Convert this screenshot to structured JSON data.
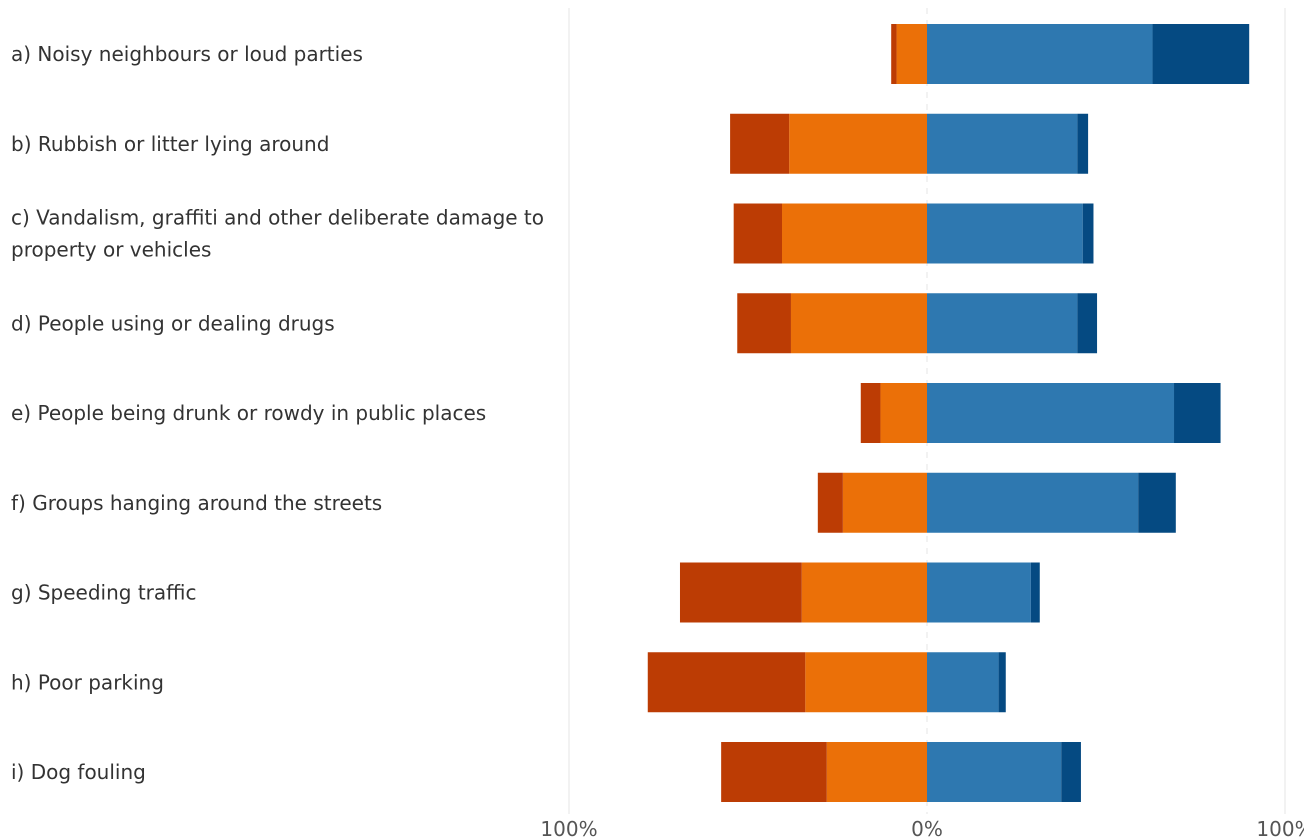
{
  "chart_data": {
    "type": "bar",
    "orientation": "horizontal",
    "stacking": "diverging",
    "categories": [
      "a) Noisy neighbours or loud parties",
      "b) Rubbish or litter lying around",
      "c) Vandalism, graffiti and other deliberate damage to property or vehicles",
      "d) People using or dealing drugs",
      "e) People being drunk or rowdy in public places",
      "f) Groups hanging around the streets",
      "g) Speeding traffic",
      "h) Poor parking",
      "i) Dog fouling"
    ],
    "category_lines": [
      [
        "a) Noisy neighbours or loud parties"
      ],
      [
        "b) Rubbish or litter lying around"
      ],
      [
        "c) Vandalism, graffiti and other deliberate damage to",
        "property or vehicles"
      ],
      [
        "d) People using or dealing drugs"
      ],
      [
        "e) People being drunk or rowdy in public places"
      ],
      [
        "f) Groups hanging around the streets"
      ],
      [
        "g) Speeding traffic"
      ],
      [
        "h) Poor parking"
      ],
      [
        "i) Dog fouling"
      ]
    ],
    "series": [
      {
        "side": "negative",
        "color": "#BC3C04",
        "values": [
          1.5,
          16.5,
          13.5,
          15,
          5.5,
          7,
          34,
          44,
          29.5
        ]
      },
      {
        "side": "negative",
        "color": "#EB7008",
        "values": [
          8.5,
          38.5,
          40.5,
          38,
          13,
          23.5,
          35,
          34,
          28
        ]
      },
      {
        "side": "positive",
        "color": "#2E78B0",
        "values": [
          63,
          42,
          43.5,
          42,
          69,
          59,
          29,
          20,
          37.5
        ]
      },
      {
        "side": "positive",
        "color": "#054A82",
        "values": [
          27,
          3,
          3,
          5.5,
          13,
          10.5,
          2.5,
          2,
          5.5
        ]
      }
    ],
    "xlim": [
      -100,
      100
    ],
    "xticks": [
      {
        "value": -100,
        "label": "100%"
      },
      {
        "value": 0,
        "label": "0%"
      },
      {
        "value": 100,
        "label": "100%"
      }
    ],
    "grid": true,
    "legend": "none",
    "title": "",
    "xlabel": "",
    "ylabel": ""
  }
}
